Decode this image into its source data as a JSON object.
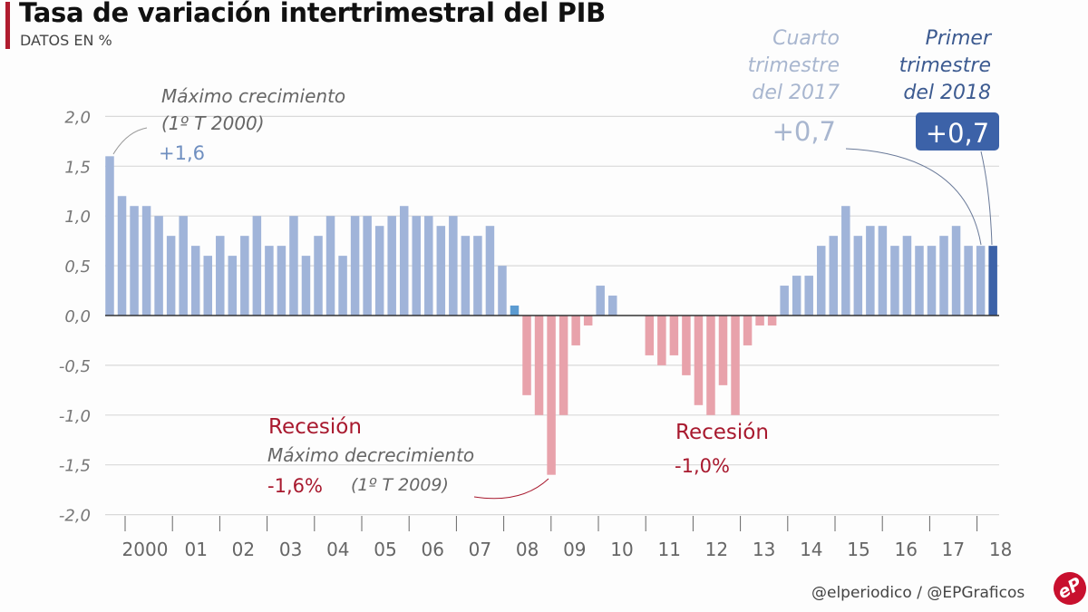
{
  "header": {
    "title": "Tasa de variación intertrimestral del PIB",
    "subtitle": "DATOS EN %"
  },
  "footer": {
    "credit": "@elperiodico / @EPGraficos",
    "logo": "eP"
  },
  "colors": {
    "positive": "#a0b4d9",
    "highlight_2008": "#5b9bd1",
    "negative": "#e8a2ab",
    "latest": "#3c62a8",
    "accent": "#b01c2e",
    "recession_text": "#a8192e",
    "annotation_gray": "#666666",
    "annotation_blue": "#6f8fc0"
  },
  "chart_data": {
    "type": "bar",
    "title": "Tasa de variación intertrimestral del PIB",
    "subtitle": "DATOS EN %",
    "xlabel": "",
    "ylabel": "%",
    "ylim": [
      -2.0,
      2.0
    ],
    "yticks": [
      "2,0",
      "1,5",
      "1,0",
      "0,5",
      "0,0",
      "-0,5",
      "-1,0",
      "-1,5",
      "-2,0"
    ],
    "ytick_values": [
      2.0,
      1.5,
      1.0,
      0.5,
      0.0,
      -0.5,
      -1.0,
      -1.5,
      -2.0
    ],
    "grid": true,
    "x_labels": [
      "2000",
      "01",
      "02",
      "03",
      "04",
      "05",
      "06",
      "07",
      "08",
      "09",
      "10",
      "11",
      "12",
      "13",
      "14",
      "15",
      "16",
      "17",
      "18"
    ],
    "period": "Quarterly, 1º T 2000 – 1º T 2018",
    "values": [
      1.6,
      1.2,
      1.1,
      1.1,
      1.0,
      0.8,
      1.0,
      0.7,
      0.6,
      0.8,
      0.6,
      0.8,
      1.0,
      0.7,
      0.7,
      1.0,
      0.6,
      0.8,
      1.0,
      0.6,
      1.0,
      1.0,
      0.9,
      1.0,
      1.1,
      1.0,
      1.0,
      0.9,
      1.0,
      0.8,
      0.8,
      0.9,
      0.5,
      0.1,
      -0.8,
      -1.0,
      -1.6,
      -1.0,
      -0.3,
      -0.1,
      0.3,
      0.2,
      0.0,
      0.0,
      -0.4,
      -0.5,
      -0.4,
      -0.6,
      -0.9,
      -1.0,
      -0.7,
      -1.0,
      -0.3,
      -0.1,
      -0.1,
      0.3,
      0.4,
      0.4,
      0.7,
      0.8,
      1.1,
      0.8,
      0.9,
      0.9,
      0.7,
      0.8,
      0.7,
      0.7,
      0.8,
      0.9,
      0.7,
      0.7,
      0.7
    ],
    "annotations": [
      {
        "id": "max",
        "lines": [
          "Máximo crecimiento",
          "(1º T 2000)"
        ],
        "value": "+1,6"
      },
      {
        "id": "rec1",
        "label": "Recesión",
        "lines": [
          "Máximo decrecimiento"
        ],
        "value": "-1,6%",
        "note": "(1º T 2009)"
      },
      {
        "id": "rec2",
        "label": "Recesión",
        "value": "-1,0%"
      },
      {
        "id": "q4_2017",
        "lines": [
          "Cuarto",
          "trimestre",
          "del 2017"
        ],
        "value": "+0,7"
      },
      {
        "id": "q1_2018",
        "lines": [
          "Primer",
          "trimestre",
          "del 2018"
        ],
        "value": "+0,7"
      }
    ]
  }
}
